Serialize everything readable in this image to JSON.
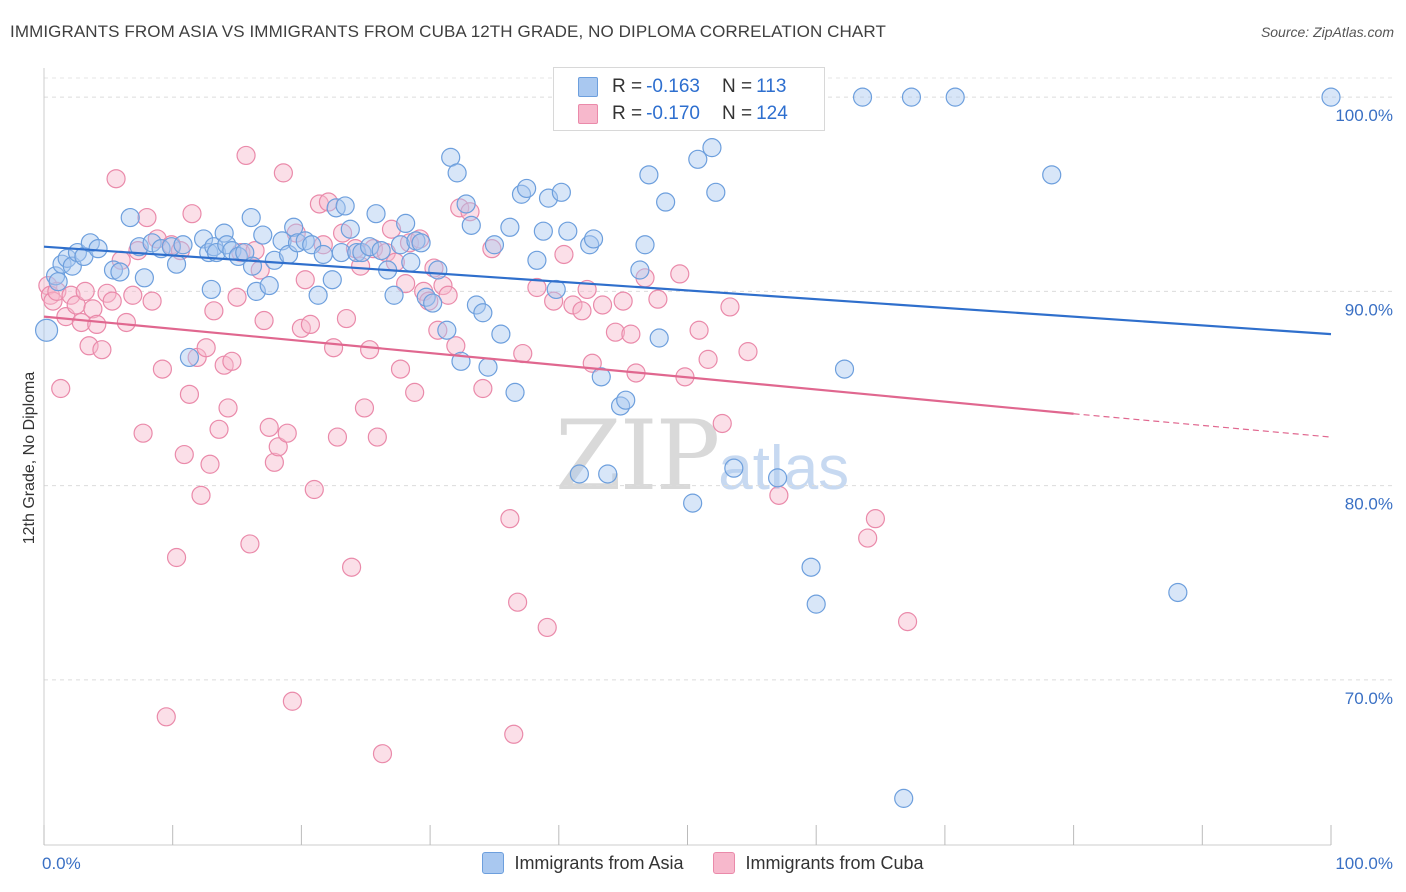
{
  "title": "IMMIGRANTS FROM ASIA VS IMMIGRANTS FROM CUBA 12TH GRADE, NO DIPLOMA CORRELATION CHART",
  "source": "Source: ZipAtlas.com",
  "watermark": {
    "zip": "ZIP",
    "atlas": "atlas"
  },
  "legend": {
    "asia": {
      "r_label": "R =",
      "r_value": "-0.163",
      "n_label": "N =",
      "n_value": "113"
    },
    "cuba": {
      "r_label": "R =",
      "r_value": "-0.170",
      "n_label": "N =",
      "n_value": "124"
    }
  },
  "bottom_legend": {
    "asia": "Immigrants from Asia",
    "cuba": "Immigrants from Cuba"
  },
  "colors": {
    "asia_fill": "#a9c8f0",
    "asia_stroke": "#6d9fdd",
    "asia_line": "#2f6fcc",
    "cuba_fill": "#f7b8cc",
    "cuba_stroke": "#ea8aaa",
    "cuba_line": "#e0678f",
    "tick": "#3a70c4"
  },
  "chart_data": {
    "type": "scatter",
    "title": "IMMIGRANTS FROM ASIA VS IMMIGRANTS FROM CUBA 12TH GRADE, NO DIPLOMA CORRELATION CHART",
    "xlabel": "",
    "ylabel": "12th Grade, No Diploma",
    "xlim": [
      0,
      100
    ],
    "ylim": [
      61.5,
      101.5
    ],
    "x_tick_labels": [
      "0.0%",
      "100.0%"
    ],
    "y_ticks": [
      70,
      80,
      90,
      100
    ],
    "y_tick_labels": [
      "70.0%",
      "80.0%",
      "90.0%",
      "100.0%"
    ],
    "grid": "dashed horizontal",
    "series": [
      {
        "name": "Immigrants from Asia",
        "r": -0.163,
        "n": 113,
        "trend": {
          "x": [
            0,
            100
          ],
          "y": [
            92.3,
            87.8
          ]
        },
        "points": [
          [
            0.2,
            88.0
          ],
          [
            0.9,
            90.8
          ],
          [
            1.1,
            90.5
          ],
          [
            1.4,
            91.4
          ],
          [
            1.8,
            91.7
          ],
          [
            2.2,
            91.3
          ],
          [
            2.6,
            92.0
          ],
          [
            3.1,
            91.8
          ],
          [
            3.6,
            92.5
          ],
          [
            4.2,
            92.2
          ],
          [
            5.4,
            91.1
          ],
          [
            5.9,
            91.0
          ],
          [
            6.7,
            93.8
          ],
          [
            7.4,
            92.3
          ],
          [
            7.8,
            90.7
          ],
          [
            8.4,
            92.5
          ],
          [
            9.1,
            92.2
          ],
          [
            9.9,
            92.3
          ],
          [
            10.3,
            91.4
          ],
          [
            10.8,
            92.4
          ],
          [
            11.3,
            86.6
          ],
          [
            12.4,
            92.7
          ],
          [
            12.8,
            92.0
          ],
          [
            13.0,
            90.1
          ],
          [
            13.2,
            92.3
          ],
          [
            13.4,
            92.0
          ],
          [
            14.0,
            93.0
          ],
          [
            14.2,
            92.4
          ],
          [
            14.6,
            92.1
          ],
          [
            15.1,
            91.8
          ],
          [
            15.6,
            92.0
          ],
          [
            16.1,
            93.8
          ],
          [
            16.2,
            91.3
          ],
          [
            16.5,
            90.0
          ],
          [
            17.0,
            92.9
          ],
          [
            17.5,
            90.3
          ],
          [
            17.9,
            91.6
          ],
          [
            18.5,
            92.6
          ],
          [
            19.0,
            91.9
          ],
          [
            19.4,
            93.3
          ],
          [
            19.7,
            92.5
          ],
          [
            20.3,
            92.6
          ],
          [
            20.8,
            92.4
          ],
          [
            21.3,
            89.8
          ],
          [
            21.7,
            91.9
          ],
          [
            22.4,
            90.6
          ],
          [
            22.7,
            94.3
          ],
          [
            23.1,
            92.0
          ],
          [
            23.4,
            94.4
          ],
          [
            23.8,
            93.2
          ],
          [
            24.3,
            92.0
          ],
          [
            24.7,
            92.0
          ],
          [
            25.3,
            92.3
          ],
          [
            25.8,
            94.0
          ],
          [
            26.2,
            92.1
          ],
          [
            26.7,
            91.1
          ],
          [
            27.2,
            89.8
          ],
          [
            27.7,
            92.4
          ],
          [
            28.1,
            93.5
          ],
          [
            28.5,
            91.5
          ],
          [
            28.9,
            92.6
          ],
          [
            29.3,
            92.5
          ],
          [
            29.7,
            89.7
          ],
          [
            30.2,
            89.4
          ],
          [
            30.6,
            91.1
          ],
          [
            31.3,
            88.0
          ],
          [
            31.6,
            96.9
          ],
          [
            32.1,
            96.1
          ],
          [
            32.4,
            86.4
          ],
          [
            32.8,
            94.5
          ],
          [
            33.2,
            93.4
          ],
          [
            33.6,
            89.3
          ],
          [
            34.1,
            88.9
          ],
          [
            34.5,
            86.1
          ],
          [
            35.0,
            92.4
          ],
          [
            35.5,
            87.8
          ],
          [
            36.2,
            93.3
          ],
          [
            36.6,
            84.8
          ],
          [
            37.1,
            95.0
          ],
          [
            37.5,
            95.3
          ],
          [
            38.3,
            91.6
          ],
          [
            38.8,
            93.1
          ],
          [
            39.2,
            94.8
          ],
          [
            39.8,
            90.1
          ],
          [
            40.2,
            95.1
          ],
          [
            40.7,
            93.1
          ],
          [
            41.6,
            80.6
          ],
          [
            42.4,
            92.4
          ],
          [
            42.7,
            92.7
          ],
          [
            43.3,
            85.6
          ],
          [
            43.8,
            80.6
          ],
          [
            44.8,
            84.1
          ],
          [
            45.2,
            84.4
          ],
          [
            46.3,
            91.1
          ],
          [
            46.7,
            92.4
          ],
          [
            47.0,
            96.0
          ],
          [
            47.8,
            87.6
          ],
          [
            48.3,
            94.6
          ],
          [
            50.4,
            79.1
          ],
          [
            50.8,
            96.8
          ],
          [
            51.9,
            97.4
          ],
          [
            52.2,
            95.1
          ],
          [
            53.6,
            80.9
          ],
          [
            57.0,
            80.4
          ],
          [
            59.6,
            75.8
          ],
          [
            60.0,
            73.9
          ],
          [
            62.2,
            86.0
          ],
          [
            63.6,
            100.0
          ],
          [
            66.8,
            63.9
          ],
          [
            67.4,
            100.0
          ],
          [
            70.8,
            100.0
          ],
          [
            78.3,
            96.0
          ],
          [
            88.1,
            74.5
          ],
          [
            100.0,
            100.0
          ]
        ]
      },
      {
        "name": "Immigrants from Cuba",
        "r": -0.17,
        "n": 124,
        "trend": {
          "x": [
            0,
            80,
            100
          ],
          "y": [
            88.7,
            83.7,
            82.5
          ]
        },
        "points": [
          [
            0.3,
            90.3
          ],
          [
            0.5,
            89.8
          ],
          [
            0.7,
            89.5
          ],
          [
            1.0,
            90.0
          ],
          [
            1.3,
            85.0
          ],
          [
            1.7,
            88.7
          ],
          [
            2.1,
            89.8
          ],
          [
            2.5,
            89.3
          ],
          [
            2.9,
            88.4
          ],
          [
            3.2,
            90.0
          ],
          [
            3.5,
            87.2
          ],
          [
            3.8,
            89.1
          ],
          [
            4.1,
            88.3
          ],
          [
            4.5,
            87.0
          ],
          [
            4.9,
            89.9
          ],
          [
            5.3,
            89.5
          ],
          [
            5.6,
            95.8
          ],
          [
            6.0,
            91.6
          ],
          [
            6.4,
            88.4
          ],
          [
            6.9,
            89.8
          ],
          [
            7.3,
            92.1
          ],
          [
            7.7,
            82.7
          ],
          [
            8.0,
            93.8
          ],
          [
            8.4,
            89.5
          ],
          [
            8.8,
            92.7
          ],
          [
            9.2,
            86.0
          ],
          [
            9.5,
            68.1
          ],
          [
            9.9,
            92.4
          ],
          [
            10.3,
            76.3
          ],
          [
            10.6,
            92.1
          ],
          [
            10.9,
            81.6
          ],
          [
            11.3,
            84.7
          ],
          [
            11.5,
            94.0
          ],
          [
            11.9,
            86.6
          ],
          [
            12.2,
            79.5
          ],
          [
            12.6,
            87.1
          ],
          [
            12.9,
            81.1
          ],
          [
            13.2,
            89.0
          ],
          [
            13.6,
            82.9
          ],
          [
            14.0,
            86.2
          ],
          [
            14.3,
            84.0
          ],
          [
            14.6,
            86.4
          ],
          [
            15.0,
            89.7
          ],
          [
            15.3,
            92.0
          ],
          [
            15.7,
            97.0
          ],
          [
            16.0,
            77.0
          ],
          [
            16.4,
            92.1
          ],
          [
            16.8,
            91.1
          ],
          [
            17.1,
            88.5
          ],
          [
            17.5,
            83.0
          ],
          [
            17.9,
            81.2
          ],
          [
            18.2,
            82.0
          ],
          [
            18.6,
            96.1
          ],
          [
            18.9,
            82.7
          ],
          [
            19.3,
            68.9
          ],
          [
            19.6,
            93.0
          ],
          [
            20.0,
            88.1
          ],
          [
            20.3,
            90.6
          ],
          [
            20.7,
            88.3
          ],
          [
            21.0,
            79.8
          ],
          [
            21.4,
            94.5
          ],
          [
            21.7,
            92.4
          ],
          [
            22.1,
            94.6
          ],
          [
            22.5,
            87.1
          ],
          [
            22.8,
            82.5
          ],
          [
            23.2,
            93.0
          ],
          [
            23.5,
            88.6
          ],
          [
            23.9,
            75.8
          ],
          [
            24.2,
            92.2
          ],
          [
            24.6,
            91.3
          ],
          [
            24.9,
            84.0
          ],
          [
            25.3,
            87.0
          ],
          [
            25.6,
            92.2
          ],
          [
            25.9,
            82.5
          ],
          [
            26.3,
            66.2
          ],
          [
            26.6,
            92.0
          ],
          [
            27.0,
            93.2
          ],
          [
            27.3,
            91.5
          ],
          [
            27.7,
            86.0
          ],
          [
            28.1,
            90.4
          ],
          [
            28.4,
            92.5
          ],
          [
            28.8,
            84.8
          ],
          [
            29.2,
            92.7
          ],
          [
            29.5,
            90.0
          ],
          [
            29.9,
            89.5
          ],
          [
            30.3,
            91.2
          ],
          [
            30.6,
            88.0
          ],
          [
            31.0,
            90.3
          ],
          [
            31.4,
            89.8
          ],
          [
            32.0,
            87.2
          ],
          [
            32.3,
            94.3
          ],
          [
            33.1,
            94.1
          ],
          [
            34.1,
            85.0
          ],
          [
            34.8,
            92.2
          ],
          [
            36.2,
            78.3
          ],
          [
            36.5,
            67.2
          ],
          [
            36.8,
            74.0
          ],
          [
            37.2,
            86.8
          ],
          [
            38.3,
            90.2
          ],
          [
            39.1,
            72.7
          ],
          [
            39.6,
            89.5
          ],
          [
            40.4,
            91.9
          ],
          [
            41.1,
            89.3
          ],
          [
            41.8,
            89.0
          ],
          [
            42.2,
            90.1
          ],
          [
            42.6,
            86.3
          ],
          [
            43.4,
            89.3
          ],
          [
            44.4,
            87.9
          ],
          [
            45.0,
            89.5
          ],
          [
            45.6,
            87.8
          ],
          [
            46.0,
            85.8
          ],
          [
            46.7,
            90.7
          ],
          [
            47.7,
            89.6
          ],
          [
            49.4,
            90.9
          ],
          [
            49.8,
            85.6
          ],
          [
            50.9,
            88.0
          ],
          [
            51.6,
            86.5
          ],
          [
            52.7,
            83.2
          ],
          [
            53.3,
            89.2
          ],
          [
            54.7,
            86.9
          ],
          [
            57.1,
            79.5
          ],
          [
            64.0,
            77.3
          ],
          [
            64.6,
            78.3
          ],
          [
            67.1,
            73.0
          ]
        ]
      }
    ]
  }
}
